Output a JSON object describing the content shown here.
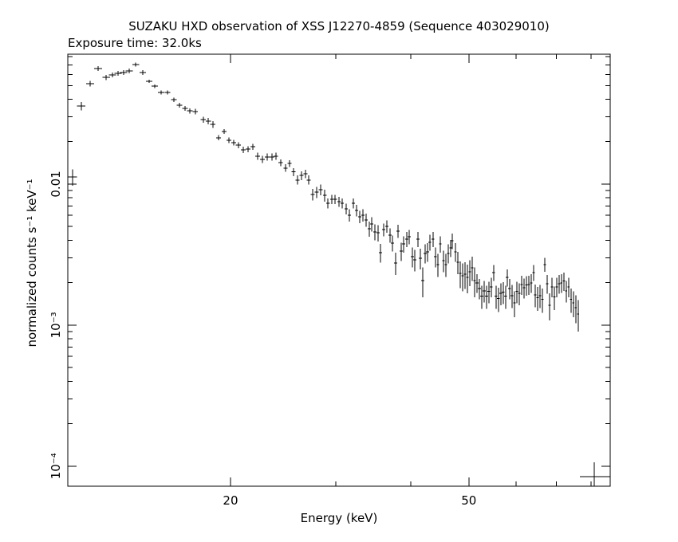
{
  "chart_data": {
    "type": "errorbar",
    "title": "SUZAKU HXD observation of XSS J12270-4859 (Sequence 403029010)",
    "subtitle": "Exposure time: 32.0ks",
    "x_label": "Energy (keV)",
    "y_label": "normalized counts s⁻¹ keV⁻¹",
    "xscale": "log",
    "yscale": "log",
    "color": "#000000",
    "xlim": [
      10.7,
      86.1
    ],
    "ylim": [
      7.2e-05,
      0.0834
    ],
    "xticks": [
      20,
      50
    ],
    "xminor_ticks": [
      30,
      40,
      60,
      70,
      80
    ],
    "yticks": [
      {
        "value": 0.0001,
        "label": "10⁻⁴"
      },
      {
        "value": 0.001,
        "label": "10⁻³"
      },
      0.01
    ],
    "yminor_ticks": [
      0.0002,
      0.0003,
      0.0004,
      0.0005,
      0.0006,
      0.0007,
      0.0008,
      0.0009,
      0.002,
      0.003,
      0.004,
      0.005,
      0.006,
      0.007,
      0.008,
      0.009,
      0.02,
      0.03,
      0.04,
      0.05,
      0.06,
      0.07,
      0.08
    ],
    "x": [
      10.9,
      11.27,
      11.66,
      12.02,
      12.4,
      12.71,
      12.98,
      13.26,
      13.55,
      13.89,
      14.28,
      14.63,
      14.95,
      15.32,
      15.7,
      16.09,
      16.44,
      16.79,
      17.11,
      17.47,
      18.02,
      18.36,
      18.69,
      19.1,
      19.52,
      19.88,
      20.25,
      20.62,
      21.0,
      21.39,
      21.79,
      22.2,
      22.61,
      23.03,
      23.46,
      23.82,
      24.26,
      24.72,
      25.1,
      25.49,
      25.88,
      26.28,
      26.69,
      27.02,
      27.43,
      27.86,
      28.29,
      28.73,
      29.08,
      29.53,
      29.9,
      30.36,
      30.73,
      31.21,
      31.58,
      32.07,
      32.46,
      32.87,
      33.27,
      33.68,
      34.1,
      34.42,
      34.84,
      35.27,
      35.59,
      36.03,
      36.48,
      36.93,
      37.27,
      37.73,
      38.08,
      38.55,
      38.91,
      39.39,
      39.75,
      40.24,
      40.61,
      41.12,
      41.5,
      41.88,
      42.27,
      42.66,
      43.05,
      43.58,
      43.98,
      44.39,
      44.8,
      45.36,
      45.77,
      46.2,
      46.61,
      46.9,
      47.48,
      47.92,
      48.36,
      48.81,
      49.26,
      49.72,
      50.18,
      50.64,
      51.11,
      51.58,
      52.06,
      52.54,
      53.03,
      53.52,
      54.01,
      54.51,
      55.02,
      55.51,
      56.03,
      56.54,
      57.07,
      57.59,
      57.95,
      58.49,
      59.03,
      59.58,
      60.13,
      60.69,
      61.25,
      61.81,
      62.37,
      62.95,
      63.53,
      64.12,
      64.52,
      65.12,
      65.72,
      66.33,
      66.94,
      67.56,
      68.19,
      68.82,
      69.45,
      70.08,
      70.73,
      71.38,
      72.05,
      72.71,
      73.38,
      74.06,
      74.75,
      75.44,
      76.14
    ],
    "values": [
      0.01124,
      0.0358,
      0.0515,
      0.066,
      0.0572,
      0.0594,
      0.061,
      0.0618,
      0.0634,
      0.0704,
      0.0618,
      0.0536,
      0.0495,
      0.0446,
      0.0446,
      0.0397,
      0.0363,
      0.0344,
      0.0331,
      0.0327,
      0.0287,
      0.028,
      0.0265,
      0.0213,
      0.0236,
      0.0205,
      0.0197,
      0.0189,
      0.0175,
      0.0177,
      0.0184,
      0.0158,
      0.015,
      0.0156,
      0.0156,
      0.0158,
      0.0142,
      0.013,
      0.014,
      0.0122,
      0.0107,
      0.0115,
      0.0118,
      0.0107,
      0.00844,
      0.00878,
      0.00913,
      0.00833,
      0.00732,
      0.00781,
      0.00781,
      0.00751,
      0.00732,
      0.00668,
      0.00602,
      0.00732,
      0.00651,
      0.00587,
      0.00602,
      0.00557,
      0.00483,
      0.00522,
      0.00458,
      0.00452,
      0.00327,
      0.00476,
      0.00502,
      0.00435,
      0.00382,
      0.00276,
      0.00464,
      0.00335,
      0.00377,
      0.00408,
      0.00424,
      0.00306,
      0.00291,
      0.00408,
      0.00298,
      0.00207,
      0.00323,
      0.00331,
      0.00387,
      0.00408,
      0.00306,
      0.00269,
      0.00377,
      0.00287,
      0.00269,
      0.00323,
      0.00353,
      0.00397,
      0.00331,
      0.0028,
      0.00233,
      0.00224,
      0.0023,
      0.00218,
      0.00239,
      0.00255,
      0.00207,
      0.00199,
      0.00182,
      0.0016,
      0.00175,
      0.0016,
      0.00173,
      0.00187,
      0.00236,
      0.0016,
      0.00154,
      0.00168,
      0.00171,
      0.0016,
      0.00218,
      0.00182,
      0.00162,
      0.00144,
      0.00173,
      0.00168,
      0.00194,
      0.00184,
      0.00192,
      0.00194,
      0.00199,
      0.00236,
      0.00164,
      0.00156,
      0.00162,
      0.00152,
      0.00269,
      0.00197,
      0.00138,
      0.00187,
      0.00158,
      0.00187,
      0.00197,
      0.00199,
      0.00205,
      0.00175,
      0.00187,
      0.00152,
      0.00144,
      0.00133,
      0.0012
    ],
    "xerr": [
      0.18,
      0.18,
      0.18,
      0.18,
      0.18,
      0.18,
      0.18,
      0.18,
      0.18,
      0.18,
      0.18,
      0.18,
      0.18,
      0.18,
      0.18,
      0.18,
      0.18,
      0.18,
      0.18,
      0.18,
      0.18,
      0.18,
      0.18,
      0.18,
      0.18,
      0.18,
      0.2,
      0.2,
      0.2,
      0.2,
      0.2,
      0.2,
      0.2,
      0.2,
      0.2,
      0.2,
      0.2,
      0.2,
      0.2,
      0.2,
      0.2,
      0.2,
      0.2,
      0.2,
      0.2,
      0.2,
      0.2,
      0.2,
      0.2,
      0.2,
      0.2,
      0.2,
      0.2,
      0.2,
      0.2,
      0.2,
      0.2,
      0.2,
      0.2,
      0.2,
      0.2,
      0.23,
      0.23,
      0.23,
      0.23,
      0.23,
      0.23,
      0.23,
      0.23,
      0.23,
      0.23,
      0.23,
      0.23,
      0.23,
      0.23,
      0.23,
      0.23,
      0.23,
      0.23,
      0.23,
      0.23,
      0.23,
      0.23,
      0.23,
      0.23,
      0.23,
      0.23,
      0.23,
      0.23,
      0.23,
      0.23,
      0.23,
      0.23,
      0.23,
      0.23,
      0.23,
      0.23,
      0.23,
      0.23,
      0.23,
      0.23,
      0.3,
      0.3,
      0.3,
      0.3,
      0.3,
      0.3,
      0.3,
      0.3,
      0.3,
      0.3,
      0.3,
      0.3,
      0.3,
      0.3,
      0.3,
      0.3,
      0.3,
      0.3,
      0.3,
      0.3,
      0.3,
      0.3,
      0.3,
      0.3,
      0.3,
      0.3,
      0.3,
      0.3,
      0.3,
      0.3,
      0.3,
      0.3,
      0.3,
      0.3,
      0.3,
      0.3,
      0.3,
      0.3,
      0.3,
      0.3,
      0.3,
      0.3,
      0.3,
      0.3
    ],
    "yerr": [
      0.0015,
      0.0024,
      0.0024,
      0.0024,
      0.0024,
      0.0024,
      0.0024,
      0.0024,
      0.0024,
      0.0024,
      0.0024,
      0.0014,
      0.0014,
      0.0014,
      0.0014,
      0.0014,
      0.0014,
      0.0014,
      0.0014,
      0.0014,
      0.0014,
      0.0014,
      0.0014,
      0.0009,
      0.0009,
      0.0009,
      0.0009,
      0.0009,
      0.0009,
      0.0009,
      0.0009,
      0.0009,
      0.0009,
      0.0009,
      0.0009,
      0.0009,
      0.0008,
      0.0008,
      0.0008,
      0.0008,
      0.0008,
      0.0008,
      0.0008,
      0.0008,
      0.0008,
      0.0008,
      0.0008,
      0.0008,
      0.0006,
      0.0006,
      0.0006,
      0.0006,
      0.0006,
      0.0006,
      0.0006,
      0.0006,
      0.0006,
      0.0006,
      0.0006,
      0.0006,
      0.0006,
      0.0006,
      0.0006,
      0.0006,
      0.0005,
      0.0005,
      0.0005,
      0.0005,
      0.0005,
      0.0005,
      0.0005,
      0.0005,
      0.0005,
      0.0005,
      0.0005,
      0.0005,
      0.0005,
      0.0005,
      0.0005,
      0.0005,
      0.0005,
      0.0005,
      0.0005,
      0.0005,
      0.0005,
      0.0005,
      0.0005,
      0.0005,
      0.0005,
      0.0005,
      0.0005,
      0.0005,
      0.0005,
      0.0005,
      0.0005,
      0.0005,
      0.0005,
      0.0005,
      0.0005,
      0.0005,
      0.0005,
      0.0003,
      0.0003,
      0.0003,
      0.0003,
      0.0003,
      0.0003,
      0.0003,
      0.0003,
      0.0003,
      0.0003,
      0.0003,
      0.0003,
      0.0003,
      0.0003,
      0.0003,
      0.0003,
      0.0003,
      0.0003,
      0.0003,
      0.0003,
      0.0003,
      0.0003,
      0.0003,
      0.0003,
      0.0003,
      0.0003,
      0.0003,
      0.0003,
      0.0003,
      0.0003,
      0.0003,
      0.0003,
      0.0003,
      0.0003,
      0.0003,
      0.0003,
      0.0003,
      0.0003,
      0.0003,
      0.0003,
      0.0003,
      0.0003,
      0.0003,
      0.0003
    ]
  }
}
